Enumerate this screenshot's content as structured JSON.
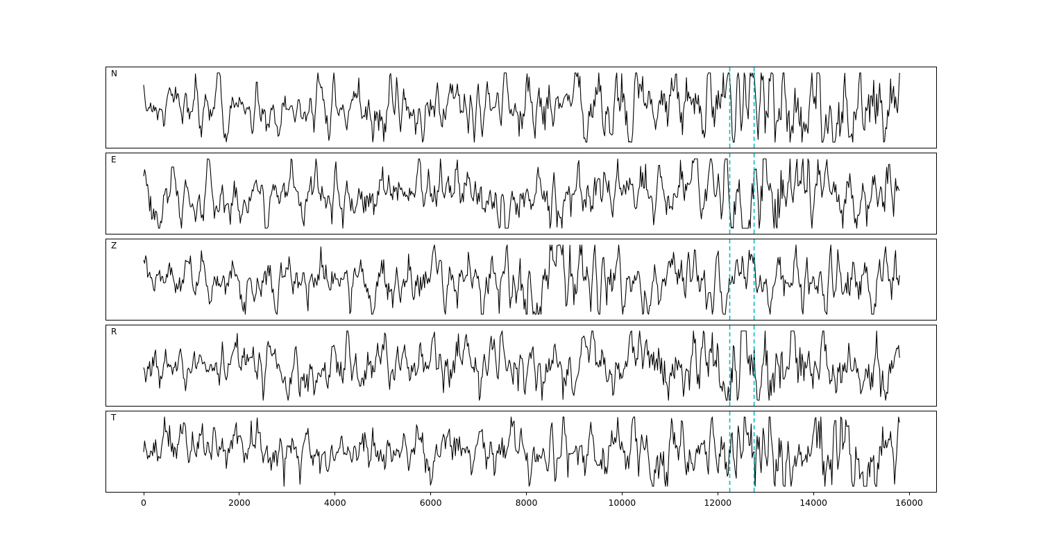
{
  "chart_data": {
    "type": "line",
    "title": "",
    "xlabel": "",
    "ylabel": "",
    "background": "#ffffff",
    "trace_color": "#000000",
    "xlim": [
      -790,
      16580
    ],
    "xticks": [
      0,
      2000,
      4000,
      6000,
      8000,
      10000,
      12000,
      14000,
      16000
    ],
    "x_data_range": [
      0,
      15800
    ],
    "grid": false,
    "legend": "none",
    "panels": [
      {
        "label": "N",
        "seed": 3,
        "burst_center": 13600,
        "burst_width": 1700,
        "burst_amp": 0.55
      },
      {
        "label": "E",
        "seed": 7,
        "burst_center": 12750,
        "burst_width": 550,
        "burst_amp": 1.1
      },
      {
        "label": "Z",
        "seed": 12,
        "burst_center": 8000,
        "burst_width": 900,
        "burst_amp": 0.45
      },
      {
        "label": "R",
        "seed": 21,
        "burst_center": 12800,
        "burst_width": 600,
        "burst_amp": 1.0
      },
      {
        "label": "T",
        "seed": 33,
        "burst_center": 13800,
        "burst_width": 1800,
        "burst_amp": 0.5
      }
    ],
    "vlines": {
      "positions": [
        12250,
        12760
      ],
      "style": "dashed",
      "color": "#00bfbf",
      "width": 1.6
    },
    "description": "Five stacked seismogram channels (N, E, Z, R, T) of band-limited noise with a cyan dashed pick window near x = 12250-12760."
  }
}
